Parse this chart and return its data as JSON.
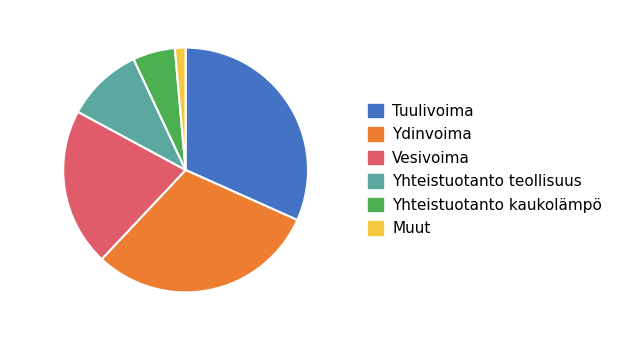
{
  "labels": [
    "Tuulivoima",
    "Ydinvoima",
    "Vesivoima",
    "Yhteistuotanto teollisuus",
    "Yhteistuotanto kaukolämpö",
    "Muut"
  ],
  "values": [
    2911,
    2783,
    1916,
    931,
    512,
    129
  ],
  "colors": [
    "#4472C4",
    "#ED7D31",
    "#E05C6A",
    "#5BA8A0",
    "#4CAF50",
    "#F5C842"
  ],
  "startangle": 90,
  "legend_fontsize": 11,
  "figsize": [
    6.4,
    3.4
  ],
  "dpi": 100
}
